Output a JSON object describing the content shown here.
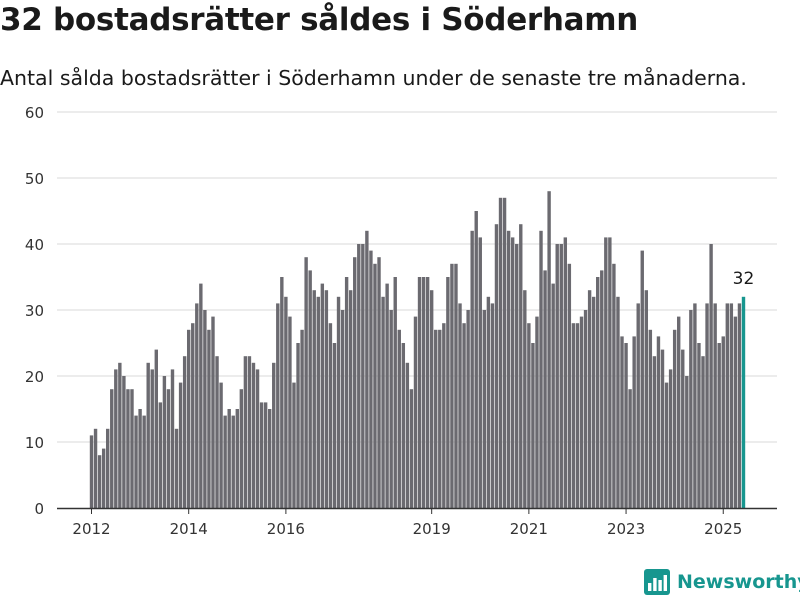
{
  "title": "32 bostadsrätter såldes i Söderhamn",
  "subtitle": "Antal sålda bostadsrätter i Söderhamn under de senaste tre månaderna.",
  "brand": {
    "name": "Newsworthy",
    "icon": "newsworthy-logo-icon"
  },
  "colors": {
    "bar": "#6b6a70",
    "highlight": "#17968f",
    "grid": "#d9d9d9",
    "axis": "#333333",
    "brand": "#17968f"
  },
  "chart_data": {
    "type": "bar",
    "title": "",
    "xlabel": "",
    "ylabel": "",
    "ylim": [
      0,
      60
    ],
    "yticks": [
      0,
      10,
      20,
      30,
      40,
      50,
      60
    ],
    "xticks": [
      "2012",
      "2014",
      "2016",
      "2019",
      "2021",
      "2023",
      "2025"
    ],
    "grid": true,
    "legend": "none",
    "highlight_label": "32",
    "x_start": "2012-01",
    "values": [
      11,
      12,
      8,
      9,
      12,
      18,
      21,
      22,
      20,
      18,
      18,
      14,
      15,
      14,
      22,
      21,
      24,
      16,
      20,
      18,
      21,
      12,
      19,
      23,
      27,
      28,
      31,
      34,
      30,
      27,
      29,
      23,
      19,
      14,
      15,
      14,
      15,
      18,
      23,
      23,
      22,
      21,
      16,
      16,
      15,
      22,
      31,
      35,
      32,
      29,
      19,
      25,
      27,
      38,
      36,
      33,
      32,
      34,
      33,
      28,
      25,
      32,
      30,
      35,
      33,
      38,
      40,
      40,
      42,
      39,
      37,
      38,
      32,
      34,
      30,
      35,
      27,
      25,
      22,
      18,
      29,
      35,
      35,
      35,
      33,
      27,
      27,
      28,
      35,
      37,
      37,
      31,
      28,
      30,
      42,
      45,
      41,
      30,
      32,
      31,
      43,
      47,
      47,
      42,
      41,
      40,
      43,
      33,
      28,
      25,
      29,
      42,
      36,
      48,
      34,
      40,
      40,
      41,
      37,
      28,
      28,
      29,
      30,
      33,
      32,
      35,
      36,
      41,
      41,
      37,
      32,
      26,
      25,
      18,
      26,
      31,
      39,
      33,
      27,
      23,
      26,
      24,
      19,
      21,
      27,
      29,
      24,
      20,
      30,
      31,
      25,
      23,
      31,
      40,
      31,
      25,
      26,
      31,
      31,
      29,
      31,
      32
    ]
  }
}
